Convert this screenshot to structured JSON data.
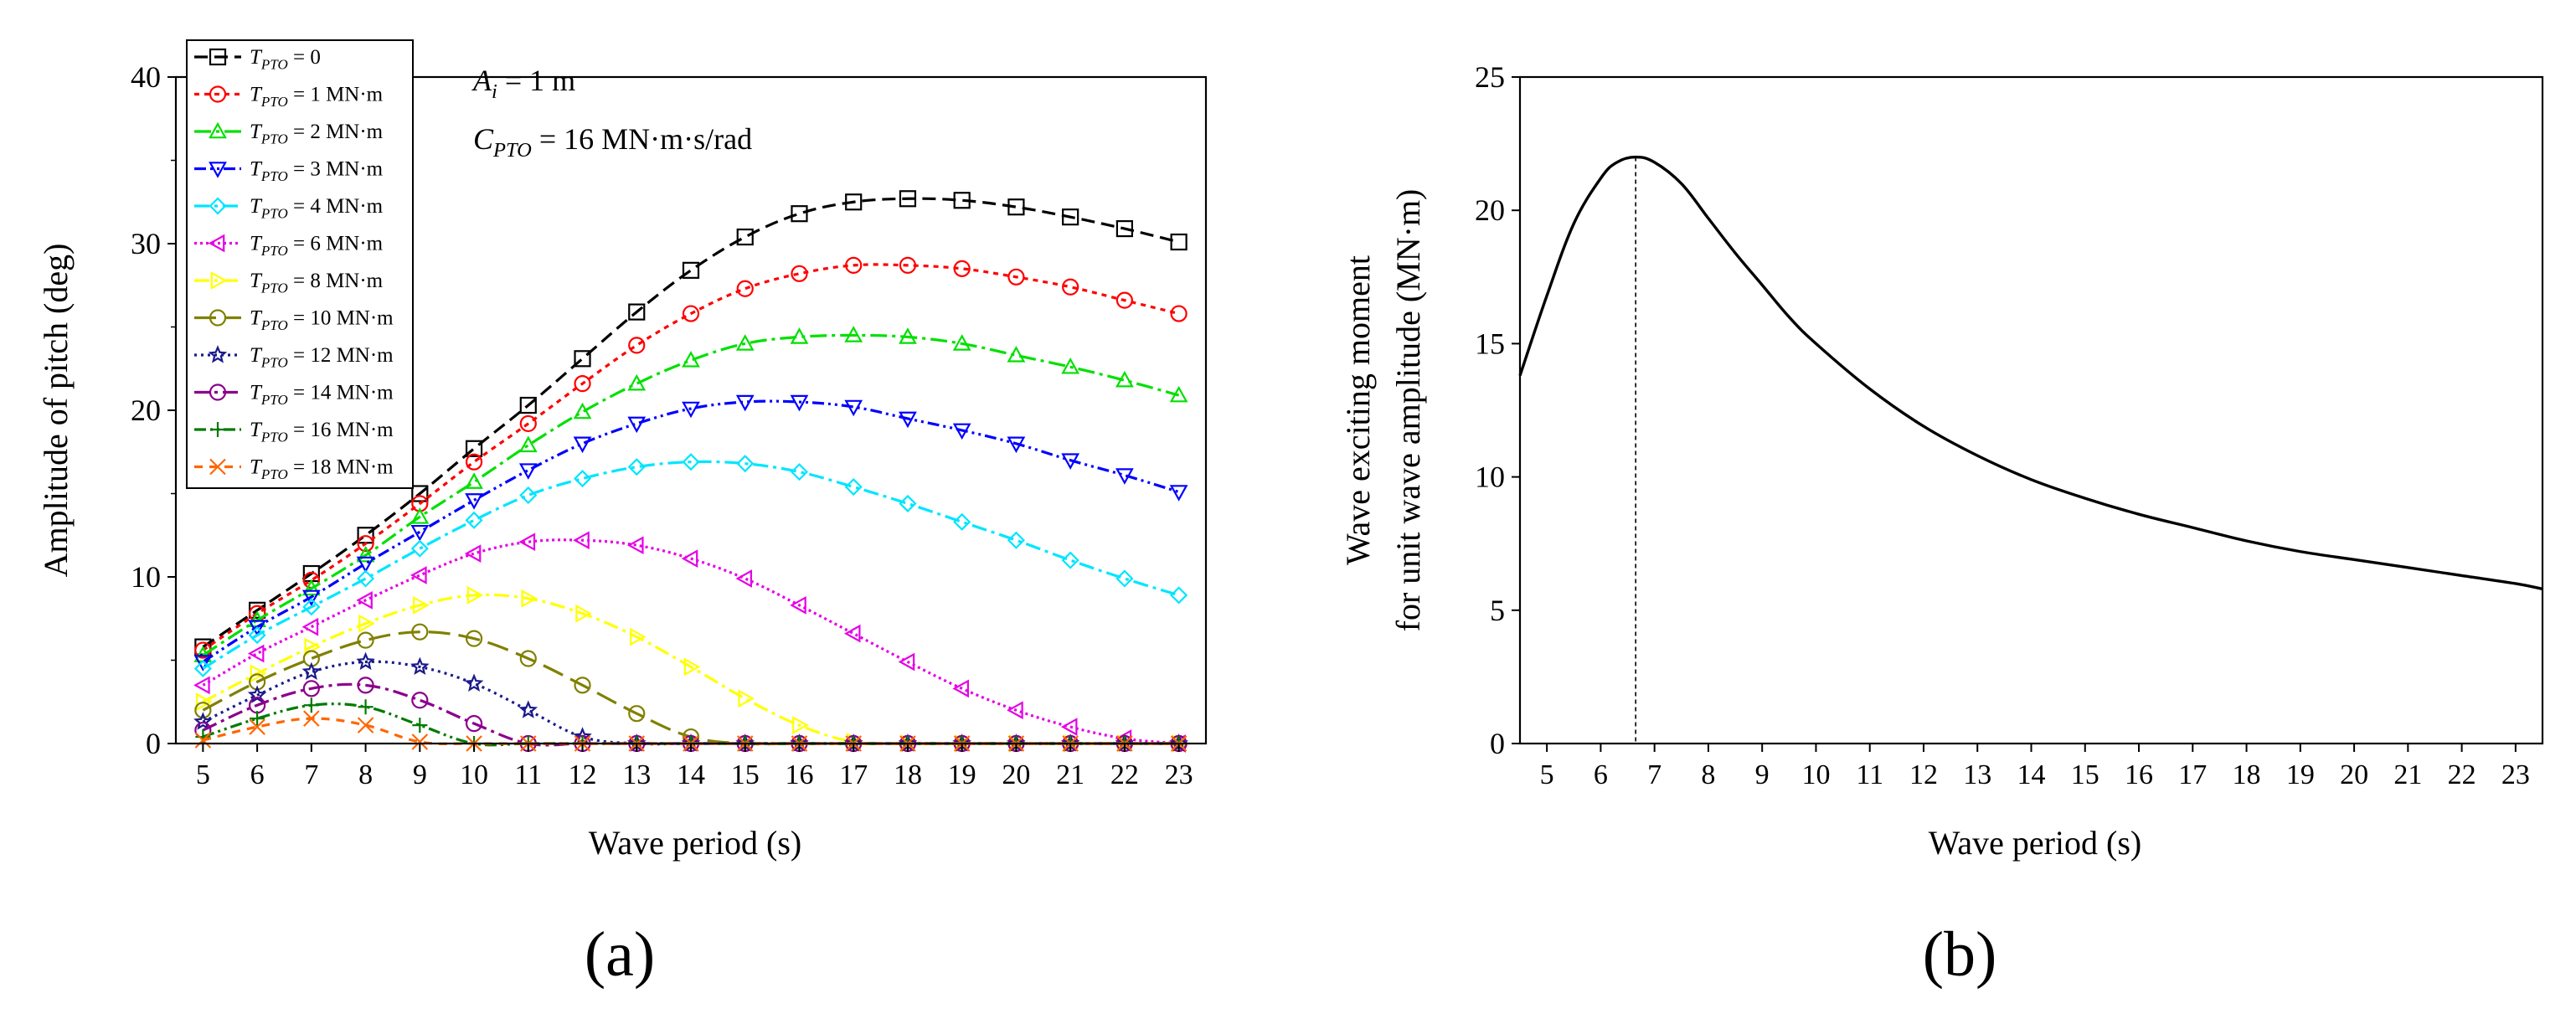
{
  "chart_data": [
    {
      "type": "line",
      "panel_label": "(a)",
      "xlabel": "Wave period (s)",
      "ylabel": "Amplitude of pitch (deg)",
      "xlim": [
        4.5,
        23.5
      ],
      "ylim": [
        0,
        40
      ],
      "xticks": [
        5,
        6,
        7,
        8,
        9,
        10,
        11,
        12,
        13,
        14,
        15,
        16,
        17,
        18,
        19,
        20,
        21,
        22,
        23
      ],
      "yticks": [
        0,
        10,
        20,
        30,
        40
      ],
      "annotations": [
        {
          "main": "A",
          "sub": "i",
          "rest": " = 1 m"
        },
        {
          "main": "C",
          "sub": "PTO",
          "rest": " = 16 MN·m·s/rad"
        }
      ],
      "legend_position": "top-left",
      "x": [
        5,
        6,
        7,
        8,
        9,
        10,
        11,
        12,
        13,
        14,
        15,
        16,
        17,
        18,
        19,
        20,
        21,
        22,
        23
      ],
      "series": [
        {
          "name": "T_PTO = 0",
          "label_main": "T",
          "label_sub": "PTO",
          "label_rest": " = 0",
          "color": "#000000",
          "dash": "16 8",
          "marker": "square",
          "values": [
            5.8,
            8.0,
            10.2,
            12.5,
            15.0,
            17.7,
            20.3,
            23.1,
            25.9,
            28.4,
            30.4,
            31.8,
            32.5,
            32.7,
            32.6,
            32.2,
            31.6,
            30.9,
            30.1
          ]
        },
        {
          "name": "T_PTO = 1 MN·m",
          "label_main": "T",
          "label_sub": "PTO",
          "label_rest": " = 1 MN·m",
          "color": "#ff0000",
          "dash": "6 6",
          "marker": "circle",
          "values": [
            5.6,
            7.8,
            9.8,
            12.0,
            14.4,
            16.9,
            19.2,
            21.6,
            23.9,
            25.8,
            27.3,
            28.2,
            28.7,
            28.7,
            28.5,
            28.0,
            27.4,
            26.6,
            25.8
          ]
        },
        {
          "name": "T_PTO = 2 MN·m",
          "label_main": "T",
          "label_sub": "PTO",
          "label_rest": " = 2 MN·m",
          "color": "#00e000",
          "dash": "20 6 4 6",
          "marker": "triangle",
          "values": [
            5.3,
            7.4,
            9.3,
            11.3,
            13.6,
            15.7,
            17.9,
            19.9,
            21.6,
            23.0,
            24.0,
            24.4,
            24.5,
            24.4,
            24.0,
            23.3,
            22.6,
            21.8,
            20.9
          ]
        },
        {
          "name": "T_PTO = 3 MN·m",
          "label_main": "T",
          "label_sub": "PTO",
          "label_rest": " = 3 MN·m",
          "color": "#0000ff",
          "dash": "14 5 3 5 3 5",
          "marker": "triangle-down",
          "values": [
            4.9,
            7.0,
            8.8,
            10.8,
            12.7,
            14.6,
            16.4,
            18.0,
            19.2,
            20.1,
            20.5,
            20.5,
            20.2,
            19.5,
            18.8,
            18.0,
            17.0,
            16.1,
            15.1
          ]
        },
        {
          "name": "T_PTO = 4 MN·m",
          "label_main": "T",
          "label_sub": "PTO",
          "label_rest": " = 4 MN·m",
          "color": "#00e5ff",
          "dash": "18 6 4 6",
          "marker": "diamond",
          "values": [
            4.5,
            6.5,
            8.2,
            9.9,
            11.7,
            13.4,
            14.9,
            15.9,
            16.6,
            16.9,
            16.8,
            16.3,
            15.4,
            14.4,
            13.3,
            12.2,
            11.0,
            9.9,
            8.9
          ]
        },
        {
          "name": "T_PTO = 6 MN·m",
          "label_main": "T",
          "label_sub": "PTO",
          "label_rest": " = 6 MN·m",
          "color": "#e600e6",
          "dash": "3 4",
          "marker": "triangle-left",
          "values": [
            3.5,
            5.4,
            7.0,
            8.6,
            10.1,
            11.4,
            12.1,
            12.2,
            11.9,
            11.1,
            9.9,
            8.3,
            6.6,
            4.9,
            3.3,
            2.0,
            1.0,
            0.3,
            0.0
          ]
        },
        {
          "name": "T_PTO = 8 MN·m",
          "label_main": "T",
          "label_sub": "PTO",
          "label_rest": " = 8 MN·m",
          "color": "#ffff00",
          "dash": "18 6 4 6",
          "marker": "triangle-right",
          "values": [
            2.5,
            4.2,
            5.8,
            7.2,
            8.3,
            8.9,
            8.7,
            7.8,
            6.4,
            4.6,
            2.7,
            1.1,
            0.1,
            0.0,
            0.0,
            0.0,
            0.0,
            0.0,
            0.0
          ]
        },
        {
          "name": "T_PTO = 10 MN·m",
          "label_main": "T",
          "label_sub": "PTO",
          "label_rest": " = 10 MN·m",
          "color": "#808000",
          "dash": "26 10",
          "marker": "hexagon",
          "values": [
            2.0,
            3.7,
            5.1,
            6.2,
            6.7,
            6.3,
            5.1,
            3.5,
            1.8,
            0.4,
            0.0,
            0.0,
            0.0,
            0.0,
            0.0,
            0.0,
            0.0,
            0.0,
            0.0
          ]
        },
        {
          "name": "T_PTO = 12 MN·m",
          "label_main": "T",
          "label_sub": "PTO",
          "label_rest": " = 12 MN·m",
          "color": "#1a1a8c",
          "dash": "3 5",
          "marker": "star",
          "values": [
            1.3,
            2.9,
            4.3,
            4.9,
            4.6,
            3.6,
            2.0,
            0.4,
            0.0,
            0.0,
            0.0,
            0.0,
            0.0,
            0.0,
            0.0,
            0.0,
            0.0,
            0.0,
            0.0
          ]
        },
        {
          "name": "T_PTO = 14 MN·m",
          "label_main": "T",
          "label_sub": "PTO",
          "label_rest": " = 14 MN·m",
          "color": "#8b008b",
          "dash": "18 6 4 6",
          "marker": "circle",
          "values": [
            0.8,
            2.3,
            3.3,
            3.5,
            2.6,
            1.2,
            0.0,
            0.0,
            0.0,
            0.0,
            0.0,
            0.0,
            0.0,
            0.0,
            0.0,
            0.0,
            0.0,
            0.0,
            0.0
          ]
        },
        {
          "name": "T_PTO = 16 MN·m",
          "label_main": "T",
          "label_sub": "PTO",
          "label_rest": " = 16 MN·m",
          "color": "#007a00",
          "dash": "14 5 3 5 3 5",
          "marker": "plus",
          "values": [
            0.4,
            1.5,
            2.3,
            2.2,
            1.1,
            0.0,
            0.0,
            0.0,
            0.0,
            0.0,
            0.0,
            0.0,
            0.0,
            0.0,
            0.0,
            0.0,
            0.0,
            0.0,
            0.0
          ]
        },
        {
          "name": "T_PTO = 18 MN·m",
          "label_main": "T",
          "label_sub": "PTO",
          "label_rest": " = 18 MN·m",
          "color": "#ff6600",
          "dash": "10 8",
          "marker": "x",
          "values": [
            0.2,
            1.0,
            1.5,
            1.1,
            0.1,
            0.0,
            0.0,
            0.0,
            0.0,
            0.0,
            0.0,
            0.0,
            0.0,
            0.0,
            0.0,
            0.0,
            0.0,
            0.0,
            0.0
          ]
        }
      ]
    },
    {
      "type": "line",
      "panel_label": "(b)",
      "xlabel": "Wave period (s)",
      "ylabel_line1": "Wave exciting moment",
      "ylabel_line2": "for unit wave amplitude (MN·m)",
      "xlim": [
        4.5,
        23.5
      ],
      "ylim": [
        0,
        25
      ],
      "xticks": [
        5,
        6,
        7,
        8,
        9,
        10,
        11,
        12,
        13,
        14,
        15,
        16,
        17,
        18,
        19,
        20,
        21,
        22,
        23
      ],
      "yticks": [
        0,
        5,
        10,
        15,
        20,
        25
      ],
      "peak_marker_x": 6.65,
      "series": [
        {
          "name": "Wave exciting moment",
          "color": "#000000",
          "x": [
            4.5,
            5.0,
            5.5,
            6.0,
            6.3,
            6.65,
            7.0,
            7.5,
            8.0,
            8.5,
            9.0,
            9.5,
            10,
            11,
            12,
            13,
            14,
            15,
            16,
            17,
            18,
            19,
            20,
            21,
            22,
            23,
            23.5
          ],
          "values": [
            13.8,
            16.8,
            19.5,
            21.2,
            21.8,
            22.0,
            21.8,
            21.0,
            19.7,
            18.4,
            17.2,
            16.0,
            15.0,
            13.3,
            11.9,
            10.8,
            9.9,
            9.2,
            8.6,
            8.1,
            7.6,
            7.2,
            6.9,
            6.6,
            6.3,
            6.0,
            5.8
          ]
        }
      ]
    }
  ]
}
